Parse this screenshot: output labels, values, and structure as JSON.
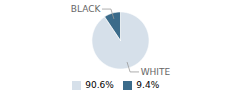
{
  "chart_data": {
    "type": "pie",
    "categories": [
      "WHITE",
      "BLACK"
    ],
    "values": [
      90.6,
      9.4
    ],
    "value_labels": [
      "90.6%",
      "9.4%"
    ],
    "colors": [
      "#d6e0ea",
      "#3b6b8a"
    ],
    "legend": "bottom"
  }
}
